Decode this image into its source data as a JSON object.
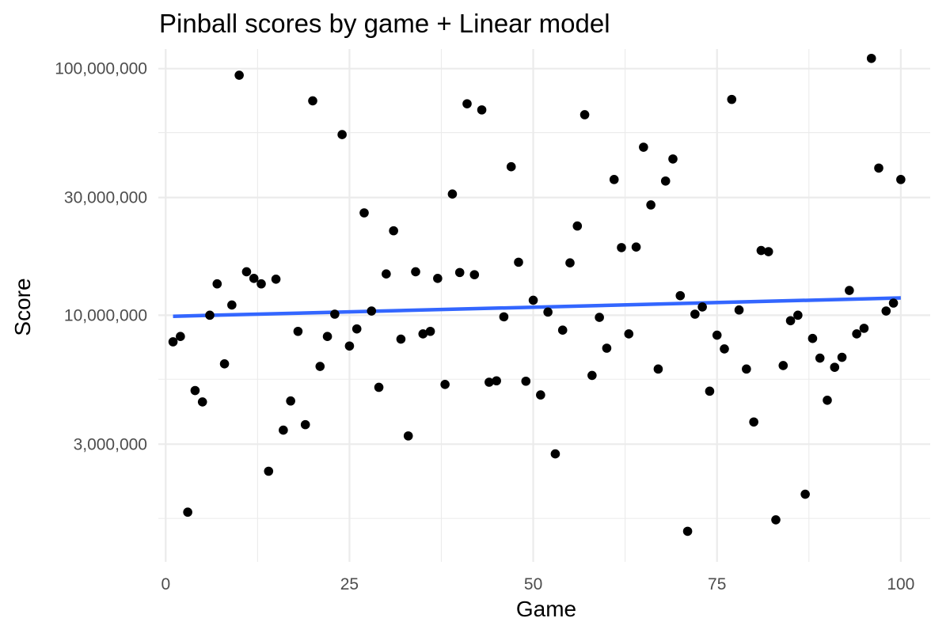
{
  "chart_data": {
    "type": "scatter",
    "title": "Pinball scores by game + Linear model",
    "xlabel": "Game",
    "ylabel": "Score",
    "xlim": [
      -1,
      104
    ],
    "ylim": [
      1000000,
      120000000
    ],
    "y_scale": "log10",
    "x_ticks": [
      0,
      25,
      50,
      75,
      100
    ],
    "x_tick_labels": [
      "0",
      "25",
      "50",
      "75",
      "100"
    ],
    "y_ticks": [
      3000000,
      10000000,
      30000000,
      100000000
    ],
    "y_tick_labels": [
      "3,000,000",
      "10,000,000",
      "30,000,000",
      "100,000,000"
    ],
    "y_minor_ticks": [
      1500000,
      5500000,
      55000000
    ],
    "grid": true,
    "legend": "none",
    "point_color": "#000000",
    "line_color": "#3366ff",
    "points": [
      {
        "x": 1,
        "y": 7800000
      },
      {
        "x": 2,
        "y": 8200000
      },
      {
        "x": 3,
        "y": 1590000
      },
      {
        "x": 4,
        "y": 4950000
      },
      {
        "x": 5,
        "y": 4450000
      },
      {
        "x": 6,
        "y": 10000000
      },
      {
        "x": 7,
        "y": 13400000
      },
      {
        "x": 8,
        "y": 6350000
      },
      {
        "x": 9,
        "y": 11000000
      },
      {
        "x": 10,
        "y": 94000000
      },
      {
        "x": 11,
        "y": 15000000
      },
      {
        "x": 12,
        "y": 14100000
      },
      {
        "x": 13,
        "y": 13400000
      },
      {
        "x": 14,
        "y": 2330000
      },
      {
        "x": 15,
        "y": 14000000
      },
      {
        "x": 16,
        "y": 3420000
      },
      {
        "x": 17,
        "y": 4490000
      },
      {
        "x": 18,
        "y": 8600000
      },
      {
        "x": 19,
        "y": 3600000
      },
      {
        "x": 20,
        "y": 74000000
      },
      {
        "x": 21,
        "y": 6200000
      },
      {
        "x": 22,
        "y": 8200000
      },
      {
        "x": 23,
        "y": 10100000
      },
      {
        "x": 24,
        "y": 54000000
      },
      {
        "x": 25,
        "y": 7500000
      },
      {
        "x": 26,
        "y": 8800000
      },
      {
        "x": 27,
        "y": 26000000
      },
      {
        "x": 28,
        "y": 10400000
      },
      {
        "x": 29,
        "y": 5100000
      },
      {
        "x": 30,
        "y": 14700000
      },
      {
        "x": 31,
        "y": 22000000
      },
      {
        "x": 32,
        "y": 8000000
      },
      {
        "x": 33,
        "y": 3240000
      },
      {
        "x": 34,
        "y": 15000000
      },
      {
        "x": 35,
        "y": 8400000
      },
      {
        "x": 36,
        "y": 8600000
      },
      {
        "x": 37,
        "y": 14100000
      },
      {
        "x": 38,
        "y": 5240000
      },
      {
        "x": 39,
        "y": 31000000
      },
      {
        "x": 40,
        "y": 14900000
      },
      {
        "x": 41,
        "y": 72000000
      },
      {
        "x": 42,
        "y": 14600000
      },
      {
        "x": 43,
        "y": 68000000
      },
      {
        "x": 44,
        "y": 5350000
      },
      {
        "x": 45,
        "y": 5420000
      },
      {
        "x": 46,
        "y": 9850000
      },
      {
        "x": 47,
        "y": 40000000
      },
      {
        "x": 48,
        "y": 16400000
      },
      {
        "x": 49,
        "y": 5400000
      },
      {
        "x": 50,
        "y": 11500000
      },
      {
        "x": 51,
        "y": 4750000
      },
      {
        "x": 52,
        "y": 10300000
      },
      {
        "x": 53,
        "y": 2740000
      },
      {
        "x": 54,
        "y": 8700000
      },
      {
        "x": 55,
        "y": 16300000
      },
      {
        "x": 56,
        "y": 23000000
      },
      {
        "x": 57,
        "y": 65000000
      },
      {
        "x": 58,
        "y": 5700000
      },
      {
        "x": 59,
        "y": 9800000
      },
      {
        "x": 60,
        "y": 7350000
      },
      {
        "x": 61,
        "y": 35500000
      },
      {
        "x": 62,
        "y": 18800000
      },
      {
        "x": 63,
        "y": 8400000
      },
      {
        "x": 64,
        "y": 18900000
      },
      {
        "x": 65,
        "y": 48000000
      },
      {
        "x": 66,
        "y": 28000000
      },
      {
        "x": 67,
        "y": 6050000
      },
      {
        "x": 68,
        "y": 35000000
      },
      {
        "x": 69,
        "y": 43000000
      },
      {
        "x": 70,
        "y": 12000000
      },
      {
        "x": 71,
        "y": 1330000
      },
      {
        "x": 72,
        "y": 10100000
      },
      {
        "x": 73,
        "y": 10800000
      },
      {
        "x": 74,
        "y": 4920000
      },
      {
        "x": 75,
        "y": 8300000
      },
      {
        "x": 76,
        "y": 7300000
      },
      {
        "x": 77,
        "y": 75000000
      },
      {
        "x": 78,
        "y": 10500000
      },
      {
        "x": 79,
        "y": 6050000
      },
      {
        "x": 80,
        "y": 3690000
      },
      {
        "x": 81,
        "y": 18300000
      },
      {
        "x": 82,
        "y": 18100000
      },
      {
        "x": 83,
        "y": 1480000
      },
      {
        "x": 84,
        "y": 6250000
      },
      {
        "x": 85,
        "y": 9500000
      },
      {
        "x": 86,
        "y": 10000000
      },
      {
        "x": 87,
        "y": 1880000
      },
      {
        "x": 88,
        "y": 8050000
      },
      {
        "x": 89,
        "y": 6700000
      },
      {
        "x": 90,
        "y": 4520000
      },
      {
        "x": 91,
        "y": 6150000
      },
      {
        "x": 92,
        "y": 6750000
      },
      {
        "x": 93,
        "y": 12600000
      },
      {
        "x": 94,
        "y": 8400000
      },
      {
        "x": 95,
        "y": 8850000
      },
      {
        "x": 96,
        "y": 110000000
      },
      {
        "x": 97,
        "y": 39500000
      },
      {
        "x": 98,
        "y": 10400000
      },
      {
        "x": 99,
        "y": 11200000
      },
      {
        "x": 100,
        "y": 35500000
      }
    ],
    "trend_line": {
      "label": "Linear model",
      "points": [
        {
          "x": 1,
          "y": 9900000
        },
        {
          "x": 100,
          "y": 11750000
        }
      ]
    }
  }
}
